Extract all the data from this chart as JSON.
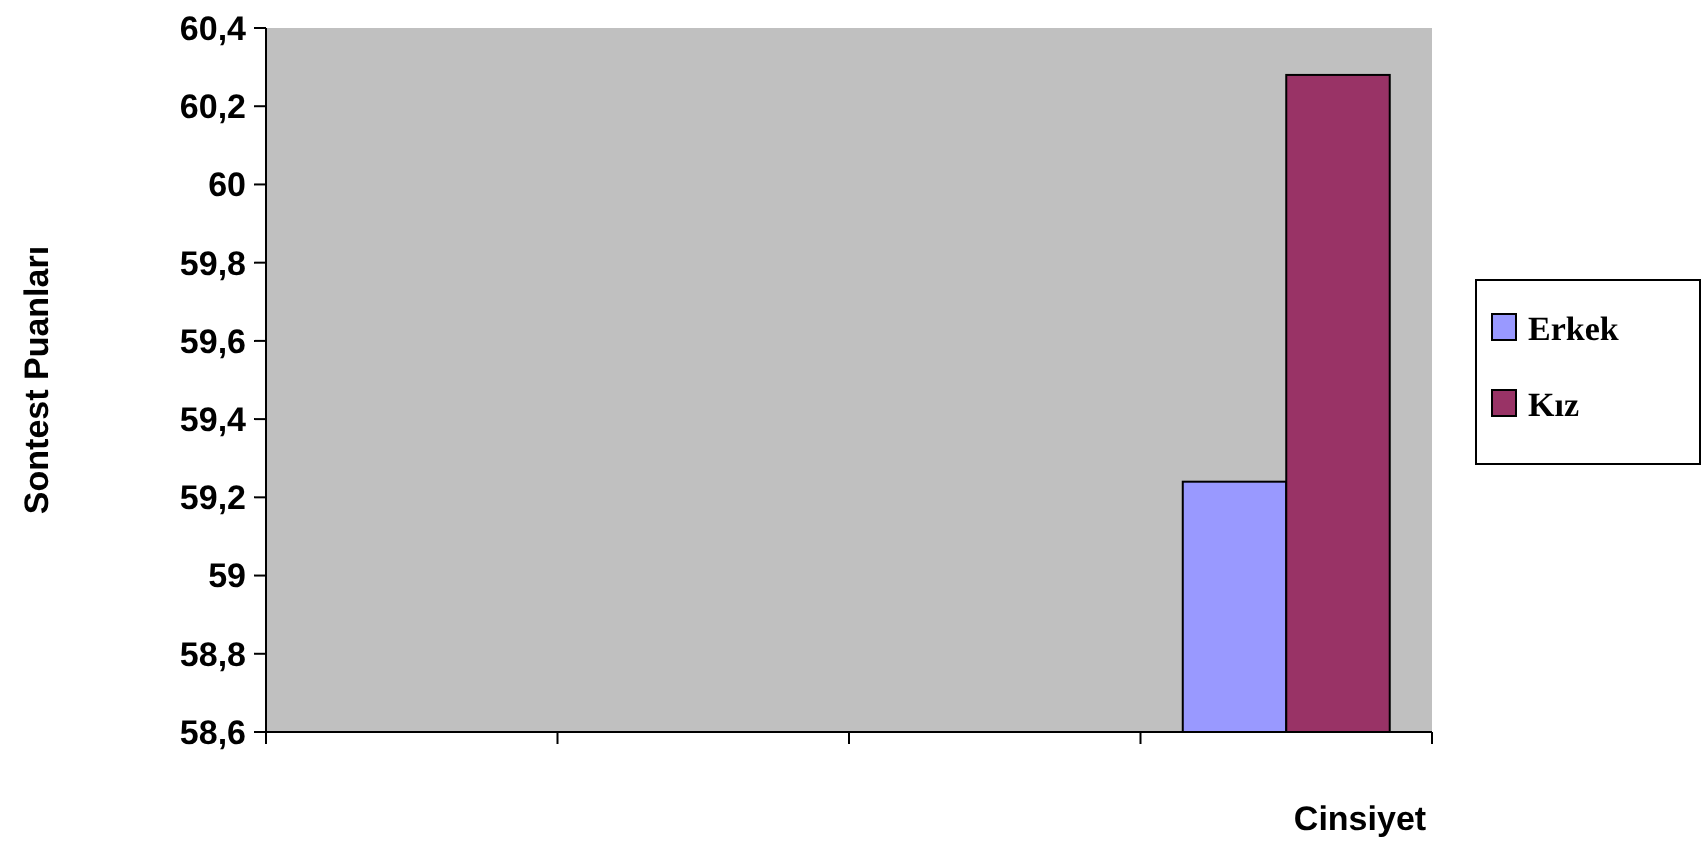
{
  "chart_data": {
    "type": "bar",
    "xlabel": "Cinsiyet",
    "ylabel": "Sontest Puanları",
    "categories": [
      null,
      null,
      null,
      null
    ],
    "series": [
      {
        "name": "Erkek",
        "color": "#9999ff",
        "values": [
          null,
          null,
          null,
          59.24
        ]
      },
      {
        "name": "Kız",
        "color": "#993366",
        "values": [
          null,
          null,
          null,
          60.28
        ]
      }
    ],
    "ylim": [
      58.6,
      60.4
    ],
    "yticks": [
      {
        "value": 58.6,
        "label": "58,6"
      },
      {
        "value": 58.8,
        "label": "58,8"
      },
      {
        "value": 59,
        "label": "59"
      },
      {
        "value": 59.2,
        "label": "59,2"
      },
      {
        "value": 59.4,
        "label": "59,4"
      },
      {
        "value": 59.6,
        "label": "59,6"
      },
      {
        "value": 59.8,
        "label": "59,8"
      },
      {
        "value": 60,
        "label": "60"
      },
      {
        "value": 60.2,
        "label": "60,2"
      },
      {
        "value": 60.4,
        "label": "60,4"
      }
    ],
    "grid": false,
    "legend": "right"
  }
}
